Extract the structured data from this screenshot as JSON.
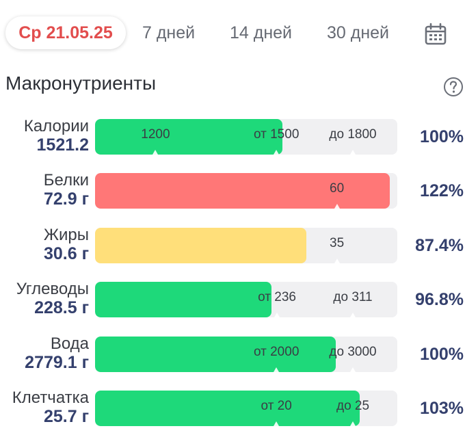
{
  "tabs": {
    "date": "Ср 21.05.25",
    "d7": "7 дней",
    "d14": "14 дней",
    "d30": "30 дней"
  },
  "section_title": "Макронутриенты",
  "colors": {
    "green": "#1ed97a",
    "red": "#ff7777",
    "yellow": "#ffdf7a",
    "track": "#f0f0f2",
    "accent_red": "#e24d4d",
    "value_blue": "#34406d"
  },
  "rows": [
    {
      "label": "Калории",
      "value": "1521.2",
      "percent": "100%",
      "color": "green",
      "fill": 0.62,
      "marks": [
        {
          "text": "1200",
          "pos": 0.2
        },
        {
          "text": "от 1500",
          "pos": 0.6
        },
        {
          "text": "до 1800",
          "pos": 0.853
        }
      ]
    },
    {
      "label": "Белки",
      "value": "72.9 г",
      "percent": "122%",
      "color": "red",
      "fill": 0.975,
      "marks": [
        {
          "text": "60",
          "pos": 0.8
        }
      ]
    },
    {
      "label": "Жиры",
      "value": "30.6 г",
      "percent": "87.4%",
      "color": "yellow",
      "fill": 0.7,
      "marks": [
        {
          "text": "35",
          "pos": 0.8
        }
      ]
    },
    {
      "label": "Углеводы",
      "value": "228.5 г",
      "percent": "96.8%",
      "color": "green",
      "fill": 0.583,
      "marks": [
        {
          "text": "от 236",
          "pos": 0.602
        },
        {
          "text": "до 311",
          "pos": 0.853
        }
      ]
    },
    {
      "label": "Вода",
      "value": "2779.1 г",
      "percent": "100%",
      "color": "green",
      "fill": 0.797,
      "marks": [
        {
          "text": "от 2000",
          "pos": 0.6
        },
        {
          "text": "до 3000",
          "pos": 0.853
        }
      ]
    },
    {
      "label": "Клетчатка",
      "value": "25.7 г",
      "percent": "103%",
      "color": "green",
      "fill": 0.876,
      "marks": [
        {
          "text": "от 20",
          "pos": 0.6
        },
        {
          "text": "до 25",
          "pos": 0.853
        }
      ]
    }
  ]
}
